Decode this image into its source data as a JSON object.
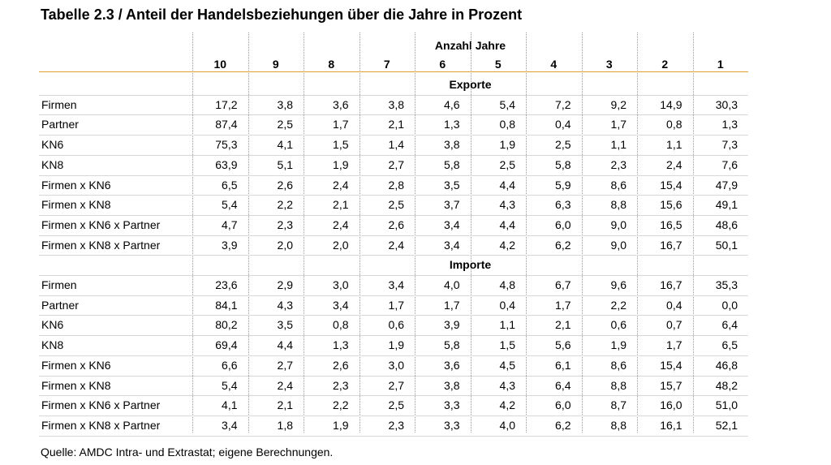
{
  "title": "Tabelle 2.3 / Anteil der Handelsbeziehungen über die Jahre in Prozent",
  "table": {
    "group_header": "Anzahl Jahre",
    "columns": [
      "10",
      "9",
      "8",
      "7",
      "6",
      "5",
      "4",
      "3",
      "2",
      "1"
    ],
    "sections": [
      {
        "title": "Exporte",
        "rows": [
          {
            "label": "Firmen",
            "values": [
              "17,2",
              "3,8",
              "3,6",
              "3,8",
              "4,6",
              "5,4",
              "7,2",
              "9,2",
              "14,9",
              "30,3"
            ]
          },
          {
            "label": "Partner",
            "values": [
              "87,4",
              "2,5",
              "1,7",
              "2,1",
              "1,3",
              "0,8",
              "0,4",
              "1,7",
              "0,8",
              "1,3"
            ]
          },
          {
            "label": "KN6",
            "values": [
              "75,3",
              "4,1",
              "1,5",
              "1,4",
              "3,8",
              "1,9",
              "2,5",
              "1,1",
              "1,1",
              "7,3"
            ]
          },
          {
            "label": "KN8",
            "values": [
              "63,9",
              "5,1",
              "1,9",
              "2,7",
              "5,8",
              "2,5",
              "5,8",
              "2,3",
              "2,4",
              "7,6"
            ]
          },
          {
            "label": "Firmen x KN6",
            "values": [
              "6,5",
              "2,6",
              "2,4",
              "2,8",
              "3,5",
              "4,4",
              "5,9",
              "8,6",
              "15,4",
              "47,9"
            ]
          },
          {
            "label": "Firmen x KN8",
            "values": [
              "5,4",
              "2,2",
              "2,1",
              "2,5",
              "3,7",
              "4,3",
              "6,3",
              "8,8",
              "15,6",
              "49,1"
            ]
          },
          {
            "label": "Firmen x KN6 x Partner",
            "values": [
              "4,7",
              "2,3",
              "2,4",
              "2,6",
              "3,4",
              "4,4",
              "6,0",
              "9,0",
              "16,5",
              "48,6"
            ]
          },
          {
            "label": "Firmen x KN8 x Partner",
            "values": [
              "3,9",
              "2,0",
              "2,0",
              "2,4",
              "3,4",
              "4,2",
              "6,2",
              "9,0",
              "16,7",
              "50,1"
            ]
          }
        ]
      },
      {
        "title": "Importe",
        "rows": [
          {
            "label": "Firmen",
            "values": [
              "23,6",
              "2,9",
              "3,0",
              "3,4",
              "4,0",
              "4,8",
              "6,7",
              "9,6",
              "16,7",
              "35,3"
            ]
          },
          {
            "label": "Partner",
            "values": [
              "84,1",
              "4,3",
              "3,4",
              "1,7",
              "1,7",
              "0,4",
              "1,7",
              "2,2",
              "0,4",
              "0,0"
            ]
          },
          {
            "label": "KN6",
            "values": [
              "80,2",
              "3,5",
              "0,8",
              "0,6",
              "3,9",
              "1,1",
              "2,1",
              "0,6",
              "0,7",
              "6,4"
            ]
          },
          {
            "label": "KN8",
            "values": [
              "69,4",
              "4,4",
              "1,3",
              "1,9",
              "5,8",
              "1,5",
              "5,6",
              "1,9",
              "1,7",
              "6,5"
            ]
          },
          {
            "label": "Firmen x KN6",
            "values": [
              "6,6",
              "2,7",
              "2,6",
              "3,0",
              "3,6",
              "4,5",
              "6,1",
              "8,6",
              "15,4",
              "46,8"
            ]
          },
          {
            "label": "Firmen x KN8",
            "values": [
              "5,4",
              "2,4",
              "2,3",
              "2,7",
              "3,8",
              "4,3",
              "6,4",
              "8,8",
              "15,7",
              "48,2"
            ]
          },
          {
            "label": "Firmen x KN6 x Partner",
            "values": [
              "4,1",
              "2,1",
              "2,2",
              "2,5",
              "3,3",
              "4,2",
              "6,0",
              "8,7",
              "16,0",
              "51,0"
            ]
          },
          {
            "label": "Firmen x KN8 x Partner",
            "values": [
              "3,4",
              "1,8",
              "1,9",
              "2,3",
              "3,3",
              "4,0",
              "6,2",
              "8,8",
              "16,1",
              "52,1"
            ]
          }
        ]
      }
    ]
  },
  "source": "Quelle: AMDC Intra- und Extrastat; eigene Berechnungen."
}
